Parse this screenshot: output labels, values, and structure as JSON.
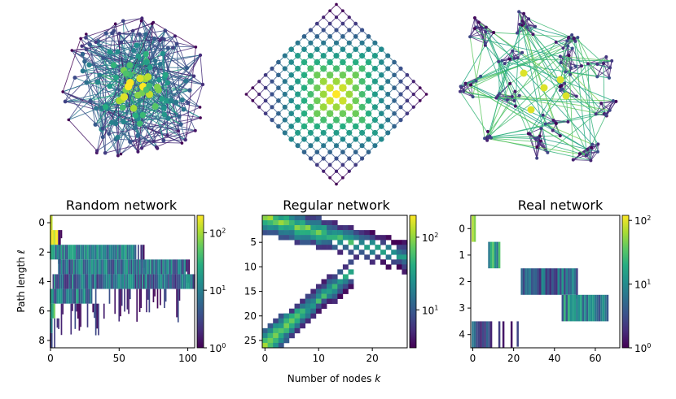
{
  "figure": {
    "shared_xlabel": "Number of nodes",
    "shared_xlabel_symbol": "k",
    "shared_ylabel": "Path length",
    "shared_ylabel_symbol": "ℓ"
  },
  "networks": [
    {
      "name": "random-network",
      "kind": "random"
    },
    {
      "name": "regular-network",
      "kind": "lattice"
    },
    {
      "name": "real-network",
      "kind": "community"
    }
  ],
  "colormap": {
    "name": "viridis",
    "stops": [
      "#440154",
      "#472c7a",
      "#3b518b",
      "#2c718e",
      "#21908d",
      "#27ad81",
      "#5cc863",
      "#aadc32",
      "#fde725"
    ]
  },
  "chart_data": [
    {
      "type": "heatmap",
      "title": "Random network",
      "xlabel": "",
      "ylabel": "Path length ℓ",
      "xlim": [
        0,
        105
      ],
      "ylim": [
        8.5,
        -0.5
      ],
      "x_ticks": [
        0,
        50,
        100
      ],
      "y_ticks": [
        0,
        2,
        4,
        6,
        8
      ],
      "colorbar": {
        "scale": "log",
        "range": [
          1,
          200
        ],
        "ticks": [
          {
            "base": "10",
            "exp": "0",
            "value": 1
          },
          {
            "base": "10",
            "exp": "1",
            "value": 10
          },
          {
            "base": "10",
            "exp": "2",
            "value": 100
          }
        ]
      },
      "rows": [
        {
          "y": 0,
          "dense": [
            0,
            1
          ],
          "sparse_to": 1,
          "level": 1.0
        },
        {
          "y": 1,
          "dense": [
            0,
            5
          ],
          "sparse_to": 8,
          "level": 0.88
        },
        {
          "y": 2,
          "dense": [
            0,
            62
          ],
          "sparse_to": 70,
          "level": 0.45
        },
        {
          "y": 3,
          "dense": [
            6,
            98
          ],
          "sparse_to": 102,
          "level": 0.38
        },
        {
          "y": 4,
          "dense": [
            2,
            105
          ],
          "sparse_to": 105,
          "level": 0.35
        },
        {
          "y": 5,
          "dense": [
            0,
            30
          ],
          "sparse_to": 95,
          "level": 0.4
        },
        {
          "y": 6,
          "dense": [
            0,
            3
          ],
          "sparse_to": 40,
          "level": 0.6
        },
        {
          "y": 7,
          "dense": [
            0,
            1
          ],
          "sparse_to": 6,
          "level": 0.5
        },
        {
          "y": 8,
          "dense": [
            0,
            0
          ],
          "sparse_to": 1,
          "level": 0.2
        }
      ]
    },
    {
      "type": "heatmap",
      "title": "Regular network",
      "xlabel": "Number of nodes k",
      "ylabel": "",
      "xlim": [
        -0.5,
        26.5
      ],
      "ylim": [
        26.5,
        -0.5
      ],
      "x_ticks": [
        0,
        10,
        20
      ],
      "y_ticks": [
        5,
        10,
        15,
        20,
        25
      ],
      "colorbar": {
        "scale": "log",
        "range": [
          3,
          200
        ],
        "ticks": [
          {
            "base": "10",
            "exp": "1",
            "value": 10
          },
          {
            "base": "10",
            "exp": "2",
            "value": 100
          }
        ]
      },
      "description": "Two diagonal branches: upper branch from (0,0) to (26,8), lower branch from (0,26) to (16,11); cross-hatched holes between 5 and 12.",
      "branches": [
        {
          "from": [
            0,
            0
          ],
          "to": [
            26,
            8
          ],
          "width": 3
        },
        {
          "from": [
            0,
            26
          ],
          "to": [
            16,
            11
          ],
          "width": 3
        }
      ]
    },
    {
      "type": "heatmap",
      "title": "Real network",
      "xlabel": "",
      "ylabel": "",
      "xlim": [
        -1,
        72
      ],
      "ylim": [
        4.5,
        -0.5
      ],
      "x_ticks": [
        0,
        20,
        40,
        60
      ],
      "y_ticks": [
        0,
        1,
        2,
        3,
        4
      ],
      "colorbar": {
        "scale": "log",
        "range": [
          1,
          120
        ],
        "ticks": [
          {
            "base": "10",
            "exp": "0",
            "value": 1
          },
          {
            "base": "10",
            "exp": "1",
            "value": 10
          },
          {
            "base": "10",
            "exp": "2",
            "value": 100
          }
        ]
      },
      "rows": [
        {
          "y": 0,
          "dense": [
            0,
            1
          ],
          "sparse_to": 1,
          "level": 1.0
        },
        {
          "y": 1,
          "dense": [
            8,
            13
          ],
          "sparse_to": 13,
          "level": 0.55
        },
        {
          "y": 2,
          "dense": [
            24,
            50
          ],
          "sparse_to": 52,
          "level": 0.35
        },
        {
          "y": 3,
          "dense": [
            44,
            66
          ],
          "sparse_to": 70,
          "level": 0.45
        },
        {
          "y": 4,
          "dense": [
            0,
            9
          ],
          "sparse_to": 23,
          "level": 0.22
        }
      ]
    }
  ]
}
